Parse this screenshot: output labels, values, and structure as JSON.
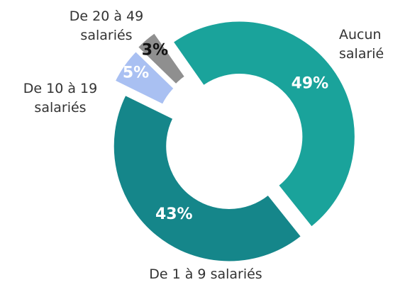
{
  "chart_data": {
    "type": "donut",
    "categories": [
      "Aucun salarié",
      "De 1 à 9 salariés",
      "De 10 à 19 salariés",
      "De 20 à 49 salariés"
    ],
    "values": [
      49,
      43,
      5,
      3
    ],
    "value_labels": [
      "49%",
      "43%",
      "5%",
      "3%"
    ],
    "colors": [
      "#1aa39b",
      "#15868a",
      "#a9c0f2",
      "#8f8f8f"
    ]
  }
}
